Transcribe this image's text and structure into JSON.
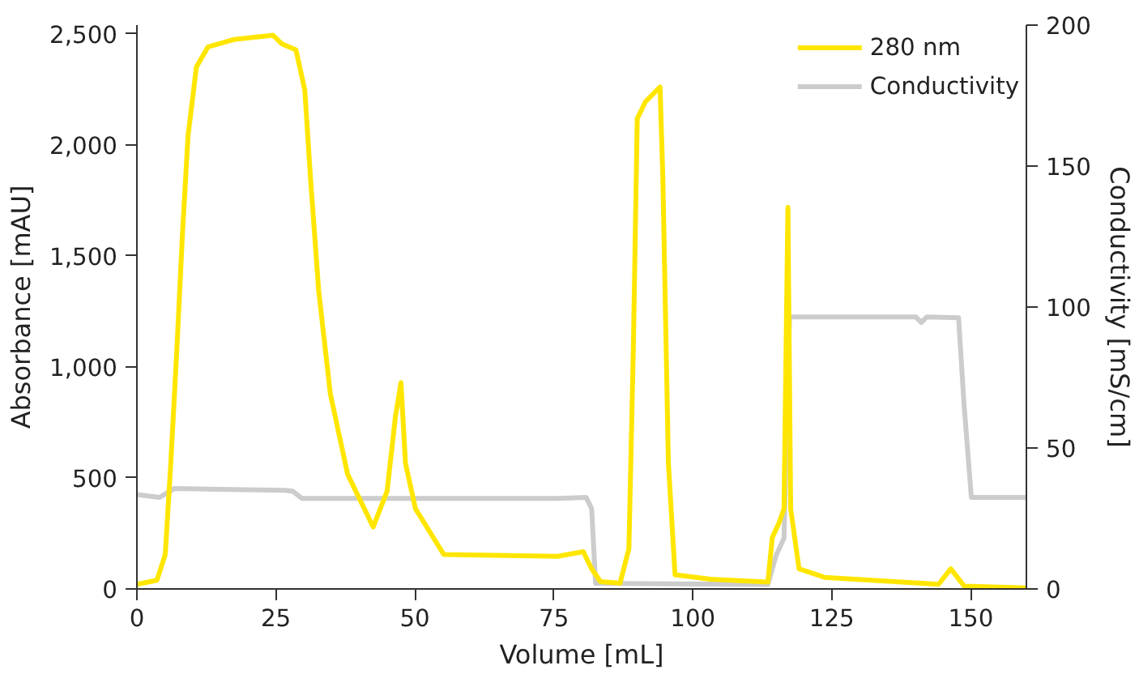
{
  "chart_data": {
    "type": "line",
    "xlabel": "Volume [mL]",
    "ylabel": "Absorbance [mAU]",
    "y2label": "Conductivity [mS/cm]",
    "xlim": [
      0,
      160
    ],
    "xticks": [
      0,
      25,
      50,
      75,
      100,
      125,
      150
    ],
    "ylim": [
      0,
      2540
    ],
    "yticks": [
      0,
      {
        "value": 500,
        "label": "500"
      },
      {
        "value": 1000,
        "label": "1,000"
      },
      {
        "value": 1500,
        "label": "1,500"
      },
      {
        "value": 2000,
        "label": "2,000"
      },
      {
        "value": 2500,
        "label": "2,500"
      }
    ],
    "y2lim": [
      0,
      200
    ],
    "y2ticks": [
      0,
      50,
      100,
      150,
      200
    ],
    "grid": false,
    "legend": "top right",
    "line_style": "solid",
    "marker": "none",
    "series": [
      {
        "name": "280 nm",
        "color": "#ffe600",
        "x": [
          0,
          3.6,
          5.1,
          6.1,
          7.2,
          8.2,
          9.2,
          10.7,
          12.8,
          17.4,
          24.5,
          26.1,
          28.6,
          30.2,
          31.2,
          32.7,
          34.8,
          37.9,
          42.5,
          45,
          46.5,
          47.5,
          48.3,
          50.1,
          55.2,
          75.7,
          80.3,
          81.8,
          83.4,
          86.9,
          88.5,
          89.3,
          90,
          91.5,
          94.1,
          94.6,
          95.6,
          96.8,
          103.2,
          113.5,
          114.3,
          115.5,
          116.4,
          117.1,
          117.6,
          119.1,
          123.7,
          144.2,
          146.4,
          148.8,
          160
        ],
        "values": [
          21,
          39,
          155,
          568,
          1085,
          1603,
          2041,
          2351,
          2442,
          2475,
          2494,
          2455,
          2429,
          2248,
          1860,
          1343,
          878,
          517,
          279,
          440,
          775,
          930,
          568,
          362,
          155,
          147,
          168,
          90,
          33,
          26,
          181,
          1085,
          2119,
          2196,
          2261,
          1860,
          568,
          64,
          44,
          31,
          233,
          297,
          362,
          1719,
          362,
          91,
          52,
          21,
          91,
          13,
          5
        ]
      },
      {
        "name": "Conductivity",
        "color": "#cccccc",
        "axis": "y2",
        "x": [
          0,
          4.1,
          6.7,
          26.6,
          28.1,
          29.7,
          75.7,
          80.8,
          81.8,
          82.5,
          113.5,
          115,
          116.4,
          117.4,
          140.1,
          141.1,
          142.1,
          147.8,
          148.8,
          150.1,
          160
        ],
        "values": [
          33.5,
          32.5,
          35.6,
          35,
          34.6,
          32.1,
          32.1,
          32.5,
          28.5,
          2,
          1.6,
          12,
          18,
          96.5,
          96.5,
          94.5,
          96.5,
          96.2,
          65,
          32.5,
          32.5
        ]
      }
    ]
  }
}
